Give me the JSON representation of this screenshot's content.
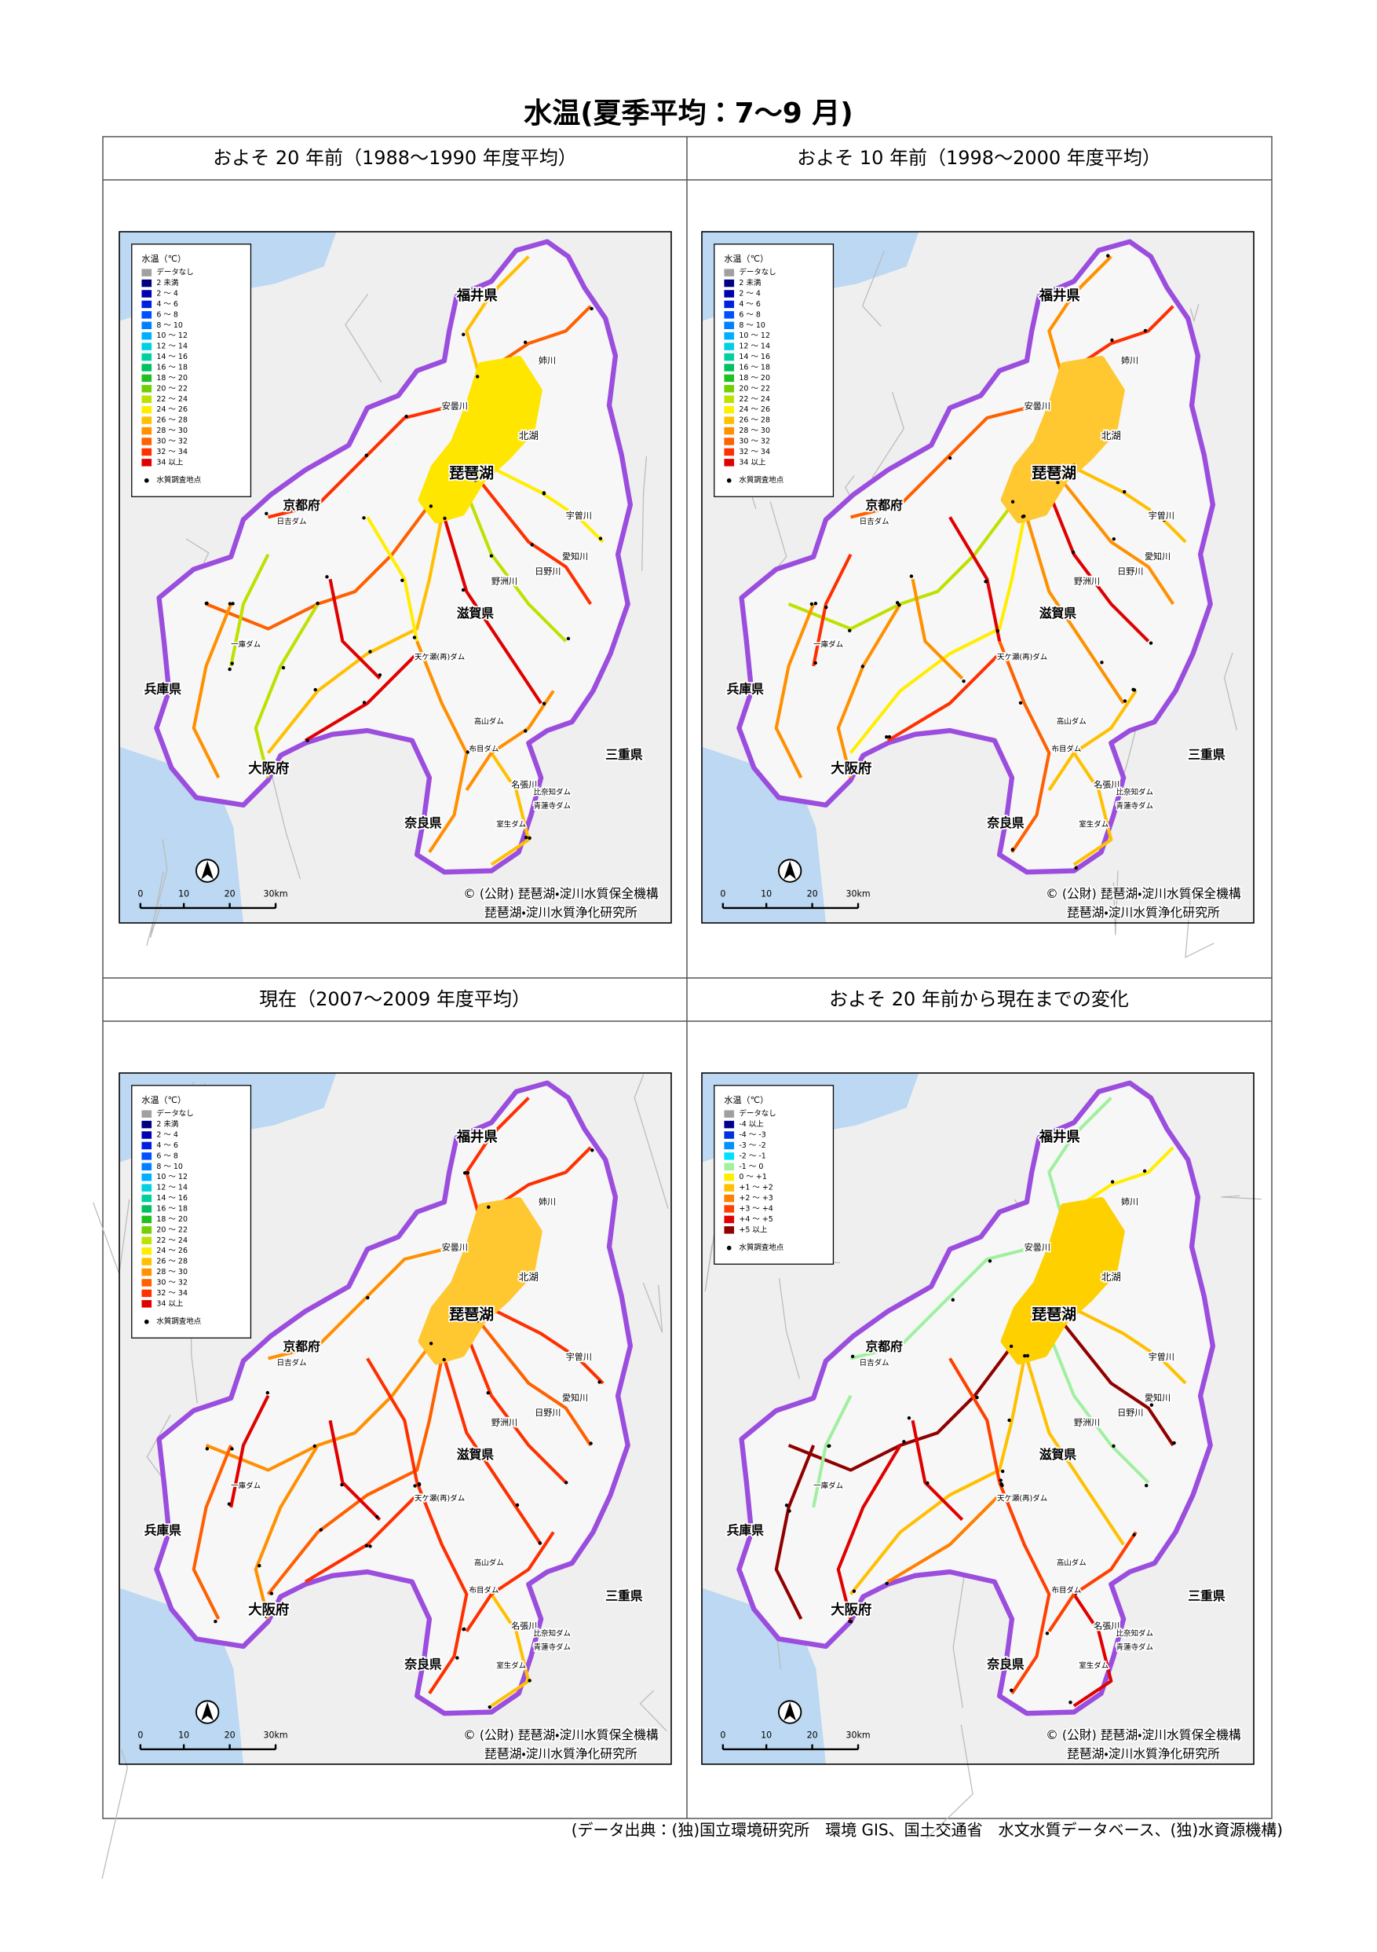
{
  "title": "水温(夏季平均：7〜9 月)",
  "panels": [
    {
      "heading": "およそ 20 年前（1988〜1990 年度平均）",
      "lake_color": "#ffe600",
      "legend": {
        "title": "水温（℃）",
        "point_label": "水質調査地点",
        "items": [
          {
            "label": "データなし",
            "color": "#a0a0a0"
          },
          {
            "label": "2 未満",
            "color": "#000080"
          },
          {
            "label": "2 〜 4",
            "color": "#0000b0"
          },
          {
            "label": "4 〜 6",
            "color": "#0020e0"
          },
          {
            "label": "6 〜 8",
            "color": "#0050ff"
          },
          {
            "label": "8 〜 10",
            "color": "#0080ff"
          },
          {
            "label": "10 〜 12",
            "color": "#00b0ff"
          },
          {
            "label": "12 〜 14",
            "color": "#00d0e0"
          },
          {
            "label": "14 〜 16",
            "color": "#00d0a0"
          },
          {
            "label": "16 〜 18",
            "color": "#00c060"
          },
          {
            "label": "18 〜 20",
            "color": "#20c020"
          },
          {
            "label": "20 〜 22",
            "color": "#70d000"
          },
          {
            "label": "22 〜 24",
            "color": "#c0e000"
          },
          {
            "label": "24 〜 26",
            "color": "#ffee00"
          },
          {
            "label": "26 〜 28",
            "color": "#ffc000"
          },
          {
            "label": "28 〜 30",
            "color": "#ff9000"
          },
          {
            "label": "30 〜 32",
            "color": "#ff6000"
          },
          {
            "label": "32 〜 34",
            "color": "#ff3000"
          },
          {
            "label": "34 以上",
            "color": "#e00000"
          }
        ]
      },
      "map_labels": [
        "福井県",
        "京都府",
        "滋賀県",
        "兵庫県",
        "大阪府",
        "奈良県",
        "三重県",
        "琵琶湖",
        "北湖",
        "姉川",
        "安曇川",
        "宇曽川",
        "愛知川",
        "日野川",
        "野洲川",
        "名張川",
        "日吉ダム",
        "一庫ダム",
        "天ケ瀬(再)ダム",
        "高山ダム",
        "布目ダム",
        "比奈知ダム",
        "青蓮寺ダム",
        "室生ダム"
      ],
      "scale": [
        "0",
        "10",
        "20",
        "30km"
      ],
      "credit": [
        "© (公財) 琵琶湖・淀川水質保全機構",
        "琵琶湖・淀川水質浄化研究所"
      ]
    },
    {
      "heading": "およそ 10 年前（1998〜2000 年度平均）",
      "lake_color": "#ffc830",
      "legend": {
        "title": "水温（℃）",
        "point_label": "水質調査地点",
        "items": [
          {
            "label": "データなし",
            "color": "#a0a0a0"
          },
          {
            "label": "2 未満",
            "color": "#000080"
          },
          {
            "label": "2 〜 4",
            "color": "#0000b0"
          },
          {
            "label": "4 〜 6",
            "color": "#0020e0"
          },
          {
            "label": "6 〜 8",
            "color": "#0050ff"
          },
          {
            "label": "8 〜 10",
            "color": "#0080ff"
          },
          {
            "label": "10 〜 12",
            "color": "#00b0ff"
          },
          {
            "label": "12 〜 14",
            "color": "#00d0e0"
          },
          {
            "label": "14 〜 16",
            "color": "#00d0a0"
          },
          {
            "label": "16 〜 18",
            "color": "#00c060"
          },
          {
            "label": "18 〜 20",
            "color": "#20c020"
          },
          {
            "label": "20 〜 22",
            "color": "#70d000"
          },
          {
            "label": "22 〜 24",
            "color": "#c0e000"
          },
          {
            "label": "24 〜 26",
            "color": "#ffee00"
          },
          {
            "label": "26 〜 28",
            "color": "#ffc000"
          },
          {
            "label": "28 〜 30",
            "color": "#ff9000"
          },
          {
            "label": "30 〜 32",
            "color": "#ff6000"
          },
          {
            "label": "32 〜 34",
            "color": "#ff3000"
          },
          {
            "label": "34 以上",
            "color": "#e00000"
          }
        ]
      },
      "map_labels": [
        "福井県",
        "京都府",
        "滋賀県",
        "兵庫県",
        "大阪府",
        "奈良県",
        "三重県",
        "琵琶湖",
        "北湖",
        "姉川",
        "安曇川",
        "宇曽川",
        "愛知川",
        "日野川",
        "野洲川",
        "名張川",
        "日吉ダム",
        "一庫ダム",
        "天ケ瀬(再)ダム",
        "高山ダム",
        "布目ダム",
        "比奈知ダム",
        "青蓮寺ダム",
        "室生ダム"
      ],
      "scale": [
        "0",
        "10",
        "20",
        "30km"
      ],
      "credit": [
        "© (公財) 琵琶湖・淀川水質保全機構",
        "琵琶湖・淀川水質浄化研究所"
      ]
    },
    {
      "heading": "現在（2007〜2009 年度平均）",
      "lake_color": "#ffc830",
      "legend": {
        "title": "水温（℃）",
        "point_label": "水質調査地点",
        "items": [
          {
            "label": "データなし",
            "color": "#a0a0a0"
          },
          {
            "label": "2 未満",
            "color": "#000080"
          },
          {
            "label": "2 〜 4",
            "color": "#0000b0"
          },
          {
            "label": "4 〜 6",
            "color": "#0020e0"
          },
          {
            "label": "6 〜 8",
            "color": "#0050ff"
          },
          {
            "label": "8 〜 10",
            "color": "#0080ff"
          },
          {
            "label": "10 〜 12",
            "color": "#00b0ff"
          },
          {
            "label": "12 〜 14",
            "color": "#00d0e0"
          },
          {
            "label": "14 〜 16",
            "color": "#00d0a0"
          },
          {
            "label": "16 〜 18",
            "color": "#00c060"
          },
          {
            "label": "18 〜 20",
            "color": "#20c020"
          },
          {
            "label": "20 〜 22",
            "color": "#70d000"
          },
          {
            "label": "22 〜 24",
            "color": "#c0e000"
          },
          {
            "label": "24 〜 26",
            "color": "#ffee00"
          },
          {
            "label": "26 〜 28",
            "color": "#ffc000"
          },
          {
            "label": "28 〜 30",
            "color": "#ff9000"
          },
          {
            "label": "30 〜 32",
            "color": "#ff6000"
          },
          {
            "label": "32 〜 34",
            "color": "#ff3000"
          },
          {
            "label": "34 以上",
            "color": "#e00000"
          }
        ]
      },
      "map_labels": [
        "福井県",
        "京都府",
        "滋賀県",
        "兵庫県",
        "大阪府",
        "奈良県",
        "三重県",
        "琵琶湖",
        "北湖",
        "姉川",
        "安曇川",
        "宇曽川",
        "愛知川",
        "日野川",
        "野洲川",
        "名張川",
        "日吉ダム",
        "一庫ダム",
        "天ケ瀬(再)ダム",
        "高山ダム",
        "布目ダム",
        "比奈知ダム",
        "青蓮寺ダム",
        "室生ダム"
      ],
      "scale": [
        "0",
        "10",
        "20",
        "30km"
      ],
      "credit": [
        "© (公財) 琵琶湖・淀川水質保全機構",
        "琵琶湖・淀川水質浄化研究所"
      ]
    },
    {
      "heading": "およそ 20 年前から現在までの変化",
      "lake_color": "#ffd000",
      "legend": {
        "title": "水温（℃）",
        "point_label": "水質調査地点",
        "items": [
          {
            "label": "データなし",
            "color": "#a0a0a0"
          },
          {
            "label": "-4 以上",
            "color": "#000090"
          },
          {
            "label": "-4 〜 -3",
            "color": "#0030e0"
          },
          {
            "label": "-3 〜 -2",
            "color": "#0090ff"
          },
          {
            "label": "-2 〜 -1",
            "color": "#00e0ff"
          },
          {
            "label": "-1 〜 0",
            "color": "#a0f0a0"
          },
          {
            "label": "0 〜 +1",
            "color": "#ffee00"
          },
          {
            "label": "+1 〜 +2",
            "color": "#ffc000"
          },
          {
            "label": "+2 〜 +3",
            "color": "#ff8000"
          },
          {
            "label": "+3 〜 +4",
            "color": "#ff4000"
          },
          {
            "label": "+4 〜 +5",
            "color": "#e00000"
          },
          {
            "label": "+5 以上",
            "color": "#900000"
          }
        ]
      },
      "map_labels": [
        "福井県",
        "京都府",
        "滋賀県",
        "兵庫県",
        "大阪府",
        "奈良県",
        "三重県",
        "琵琶湖",
        "北湖",
        "姉川",
        "安曇川",
        "宇曽川",
        "愛知川",
        "日野川",
        "野洲川",
        "名張川",
        "日吉ダム",
        "一庫ダム",
        "天ケ瀬(再)ダム",
        "高山ダム",
        "布目ダム",
        "比奈知ダム",
        "青蓮寺ダム",
        "室生ダム"
      ],
      "scale": [
        "0",
        "10",
        "20",
        "30km"
      ],
      "credit": [
        "© (公財) 琵琶湖・淀川水質保全機構",
        "琵琶湖・淀川水質浄化研究所"
      ]
    }
  ],
  "source": "(データ出典：(独)国立環境研究所　環境 GIS、国土交通省　水文水質データベース、(独)水資源機構)"
}
